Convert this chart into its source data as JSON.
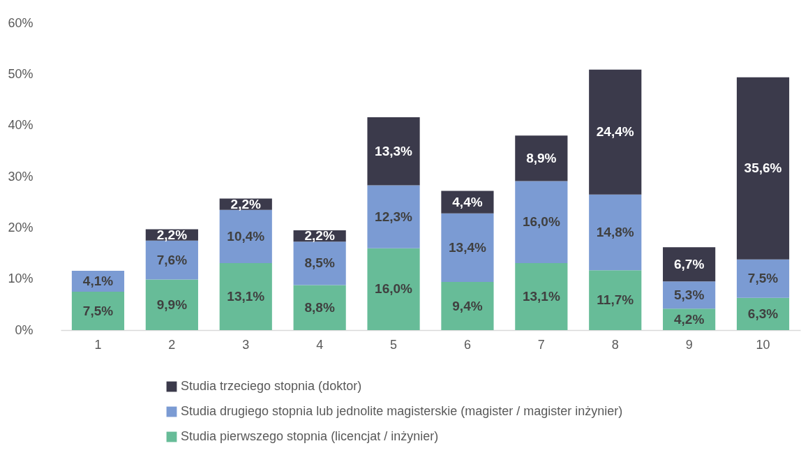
{
  "chart_data": {
    "type": "bar",
    "stacked": true,
    "categories": [
      "1",
      "2",
      "3",
      "4",
      "5",
      "6",
      "7",
      "8",
      "9",
      "10"
    ],
    "ylim": [
      0,
      60
    ],
    "yticks": [
      {
        "value": 0,
        "label": "0%"
      },
      {
        "value": 10,
        "label": "10%"
      },
      {
        "value": 20,
        "label": "20%"
      },
      {
        "value": 30,
        "label": "30%"
      },
      {
        "value": 40,
        "label": "40%"
      },
      {
        "value": 50,
        "label": "50%"
      },
      {
        "value": 60,
        "label": "60%"
      }
    ],
    "grid": false,
    "legend": "bottom",
    "series": [
      {
        "name": "Studia pierwszego stopnia (licencjat / inżynier)",
        "color": "#67bc98",
        "values": [
          7.5,
          9.9,
          13.1,
          8.8,
          16.0,
          9.4,
          13.1,
          11.7,
          4.2,
          6.3
        ],
        "value_labels": [
          "7,5%",
          "9,9%",
          "13,1%",
          "8,8%",
          "16,0%",
          "9,4%",
          "13,1%",
          "11,7%",
          "4,2%",
          "6,3%"
        ]
      },
      {
        "name": "Studia drugiego stopnia lub jednolite magisterskie (magister / magister inżynier)",
        "color": "#7b9bd3",
        "values": [
          4.1,
          7.6,
          10.4,
          8.5,
          12.3,
          13.4,
          16.0,
          14.8,
          5.3,
          7.5
        ],
        "value_labels": [
          "4,1%",
          "7,6%",
          "10,4%",
          "8,5%",
          "12,3%",
          "13,4%",
          "16,0%",
          "14,8%",
          "5,3%",
          "7,5%"
        ]
      },
      {
        "name": "Studia trzeciego stopnia (doktor)",
        "color": "#3b3a4b",
        "values": [
          null,
          2.2,
          2.2,
          2.2,
          13.3,
          4.4,
          8.9,
          24.4,
          6.7,
          35.6
        ],
        "value_labels": [
          null,
          "2,2%",
          "2,2%",
          "2,2%",
          "13,3%",
          "4,4%",
          "8,9%",
          "24,4%",
          "6,7%",
          "35,6%"
        ]
      }
    ]
  }
}
